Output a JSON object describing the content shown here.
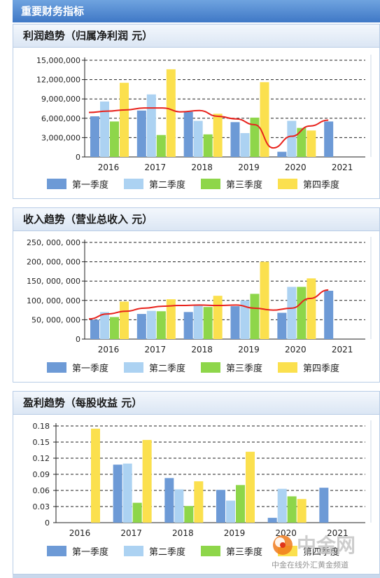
{
  "header": {
    "title": "重要财务指标"
  },
  "legend": [
    "第一季度",
    "第二季度",
    "第三季度",
    "第四季度"
  ],
  "colors": {
    "q1": "#6d9ad6",
    "q2": "#acd2f2",
    "q3": "#8ed64a",
    "q4": "#fbe04e",
    "trend": "#e8231d"
  },
  "watermark": {
    "brand": "中金网",
    "tagline": "中金在线外汇黄金频道"
  },
  "chart_data": [
    {
      "type": "bar",
      "title": "利润趋势（归属净利润 元）",
      "categories": [
        "2016",
        "2017",
        "2018",
        "2019",
        "2020",
        "2021"
      ],
      "series": [
        {
          "name": "第一季度",
          "values": [
            6300000,
            7200000,
            7000000,
            5400000,
            800000,
            5500000
          ]
        },
        {
          "name": "第二季度",
          "values": [
            8600000,
            9700000,
            5600000,
            3700000,
            5600000,
            null
          ]
        },
        {
          "name": "第三季度",
          "values": [
            5500000,
            3400000,
            3500000,
            6100000,
            4500000,
            null
          ]
        },
        {
          "name": "第四季度",
          "values": [
            11500000,
            13600000,
            6700000,
            11600000,
            4100000,
            null
          ]
        }
      ],
      "trend": [
        6900000,
        7100000,
        7300000,
        7600000,
        7600000,
        7000000,
        7200000,
        6300000,
        5900000,
        5000000,
        1400000,
        3200000,
        4800000,
        5700000
      ],
      "yticks": [
        "15,000,000",
        "12,000,000",
        "9,000,000",
        "6,000,000",
        "3,000,000",
        "0"
      ],
      "ylim": [
        0,
        15000000
      ],
      "grid": true
    },
    {
      "type": "bar",
      "title": "收入趋势（营业总收入 元）",
      "categories": [
        "2016",
        "2017",
        "2018",
        "2019",
        "2020",
        "2021"
      ],
      "series": [
        {
          "name": "第一季度",
          "values": [
            50000000,
            65000000,
            70000000,
            85000000,
            68000000,
            125000000
          ]
        },
        {
          "name": "第二季度",
          "values": [
            70000000,
            73000000,
            88000000,
            100000000,
            135000000,
            null
          ]
        },
        {
          "name": "第三季度",
          "values": [
            57000000,
            72000000,
            83000000,
            117000000,
            135000000,
            null
          ]
        },
        {
          "name": "第四季度",
          "values": [
            97000000,
            103000000,
            112000000,
            200000000,
            157000000,
            null
          ]
        }
      ],
      "trend": [
        52000000,
        65000000,
        72000000,
        80000000,
        85000000,
        87000000,
        88000000,
        87000000,
        88000000,
        80000000,
        75000000,
        80000000,
        105000000,
        127000000
      ],
      "yticks": [
        "250, 000, 000",
        "200, 000, 000",
        "150, 000, 000",
        "100, 000, 000",
        "50, 000, 000",
        "0"
      ],
      "ylim": [
        0,
        250000000
      ],
      "grid": true
    },
    {
      "type": "bar",
      "title": "盈利趋势（每股收益 元）",
      "categories": [
        "2016",
        "2017",
        "2018",
        "2019",
        "2020",
        "2021"
      ],
      "series": [
        {
          "name": "第一季度",
          "values": [
            null,
            0.108,
            0.083,
            0.061,
            0.009,
            0.065
          ]
        },
        {
          "name": "第二季度",
          "values": [
            null,
            0.11,
            0.062,
            0.041,
            0.063,
            null
          ]
        },
        {
          "name": "第三季度",
          "values": [
            null,
            0.037,
            0.031,
            0.07,
            0.049,
            null
          ]
        },
        {
          "name": "第四季度",
          "values": [
            0.175,
            0.154,
            0.077,
            0.132,
            0.044,
            null
          ]
        }
      ],
      "yticks": [
        "0.18",
        "0.15",
        "0.12",
        "0.09",
        "0.06",
        "0.03",
        "0"
      ],
      "ylim": [
        0,
        0.18
      ],
      "grid": true
    }
  ]
}
